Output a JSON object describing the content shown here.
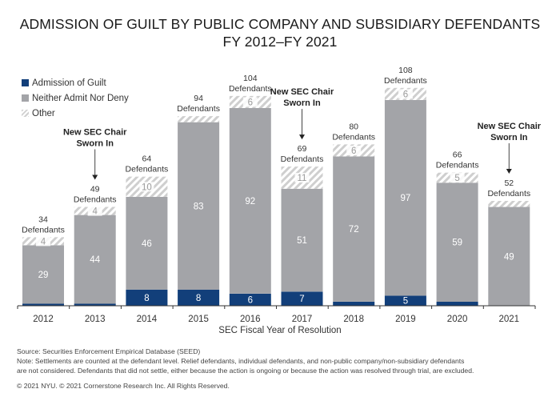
{
  "chart_data": {
    "type": "bar",
    "stacked": true,
    "title": "ADMISSION OF GUILT BY PUBLIC COMPANY AND SUBSIDIARY DEFENDANTS",
    "subtitle": "FY 2012–FY 2021",
    "xlabel": "SEC Fiscal Year of Resolution",
    "ylabel": "",
    "ylim": [
      0,
      110
    ],
    "grid": false,
    "legend_position": "top-left",
    "categories": [
      "2012",
      "2013",
      "2014",
      "2015",
      "2016",
      "2017",
      "2018",
      "2019",
      "2020",
      "2021"
    ],
    "series": [
      {
        "name": "Admission of Guilt",
        "color": "#123f7a",
        "values": [
          1,
          1,
          8,
          8,
          6,
          7,
          2,
          5,
          2,
          0
        ],
        "labels": [
          "",
          "",
          "8",
          "8",
          "6",
          "7",
          "",
          "5",
          "",
          ""
        ]
      },
      {
        "name": "Neither Admit Nor Deny",
        "color": "#a3a4a8",
        "values": [
          29,
          44,
          46,
          83,
          92,
          51,
          72,
          97,
          59,
          49
        ],
        "labels": [
          "29",
          "44",
          "46",
          "83",
          "92",
          "51",
          "72",
          "97",
          "59",
          "49"
        ]
      },
      {
        "name": "Other",
        "color": "#d0d0d0",
        "pattern": "hatched",
        "values": [
          4,
          4,
          10,
          3,
          6,
          11,
          6,
          6,
          5,
          3
        ],
        "labels": [
          "4",
          "4",
          "10",
          "",
          "6",
          "11",
          "6",
          "6",
          "5",
          ""
        ]
      }
    ],
    "totals": [
      34,
      49,
      64,
      94,
      104,
      69,
      80,
      108,
      66,
      52
    ],
    "total_label_suffix": "Defendants",
    "annotations": [
      {
        "category": "2013",
        "text_line1": "New SEC Chair",
        "text_line2": "Sworn In"
      },
      {
        "category": "2017",
        "text_line1": "New SEC Chair",
        "text_line2": "Sworn In"
      },
      {
        "category": "2021",
        "text_line1": "New SEC Chair",
        "text_line2": "Sworn In"
      }
    ]
  },
  "legend": {
    "items": [
      {
        "label": "Admission of Guilt"
      },
      {
        "label": "Neither Admit Nor Deny"
      },
      {
        "label": "Other"
      }
    ]
  },
  "footer": {
    "source": "Source: Securities Enforcement Empirical Database (SEED)",
    "note_line1": "Note: Settlements are counted at the defendant level. Relief defendants, individual defendants, and non-public company/non-subsidiary defendants",
    "note_line2": "are not considered. Defendants that did not settle, either because the action is ongoing or because the action was resolved through trial, are excluded.",
    "copyright": "© 2021 NYU. © 2021 Cornerstone Research Inc. All Rights Reserved."
  }
}
